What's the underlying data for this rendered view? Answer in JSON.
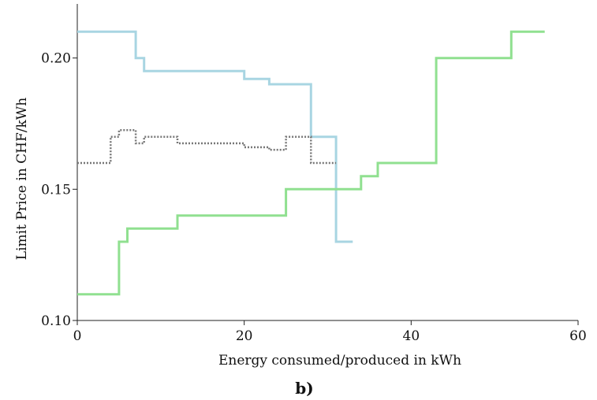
{
  "chart_data": {
    "type": "line",
    "step": true,
    "xlabel": "Energy consumed/produced in kWh",
    "ylabel": "Limit Price in CHF/kWh",
    "panel_label": "b)",
    "xlim": [
      0,
      60
    ],
    "ylim": [
      0.1,
      0.22
    ],
    "xticks": [
      0,
      20,
      40,
      60
    ],
    "yticks": [
      0.1,
      0.15,
      0.2
    ],
    "ytick_labels": [
      "0.10",
      "0.15",
      "0.20"
    ],
    "grid": false,
    "legend": "none",
    "series": [
      {
        "color": "#a8d5e2",
        "style": "solid",
        "x": [
          0,
          7,
          7,
          8,
          8,
          20,
          20,
          23,
          23,
          28,
          28,
          31,
          31,
          33
        ],
        "y": [
          0.21,
          0.21,
          0.2,
          0.2,
          0.195,
          0.195,
          0.192,
          0.192,
          0.19,
          0.19,
          0.17,
          0.17,
          0.13,
          0.13
        ]
      },
      {
        "color": "#90e090",
        "style": "solid",
        "x": [
          0,
          5,
          5,
          6,
          6,
          12,
          12,
          25,
          25,
          34,
          34,
          36,
          36,
          43,
          43,
          52,
          52,
          56
        ],
        "y": [
          0.11,
          0.11,
          0.13,
          0.13,
          0.135,
          0.135,
          0.14,
          0.14,
          0.15,
          0.15,
          0.155,
          0.155,
          0.16,
          0.16,
          0.2,
          0.2,
          0.21,
          0.21
        ]
      },
      {
        "color": "#777777",
        "style": "dotted",
        "x": [
          0,
          4,
          4,
          5,
          5,
          7,
          7,
          8,
          8,
          12,
          12,
          20,
          20,
          23,
          23,
          25,
          25,
          28,
          28,
          31
        ],
        "y": [
          0.16,
          0.16,
          0.17,
          0.17,
          0.1725,
          0.1725,
          0.1675,
          0.1675,
          0.17,
          0.17,
          0.1675,
          0.1675,
          0.166,
          0.166,
          0.165,
          0.165,
          0.17,
          0.17,
          0.16,
          0.16
        ]
      }
    ]
  }
}
